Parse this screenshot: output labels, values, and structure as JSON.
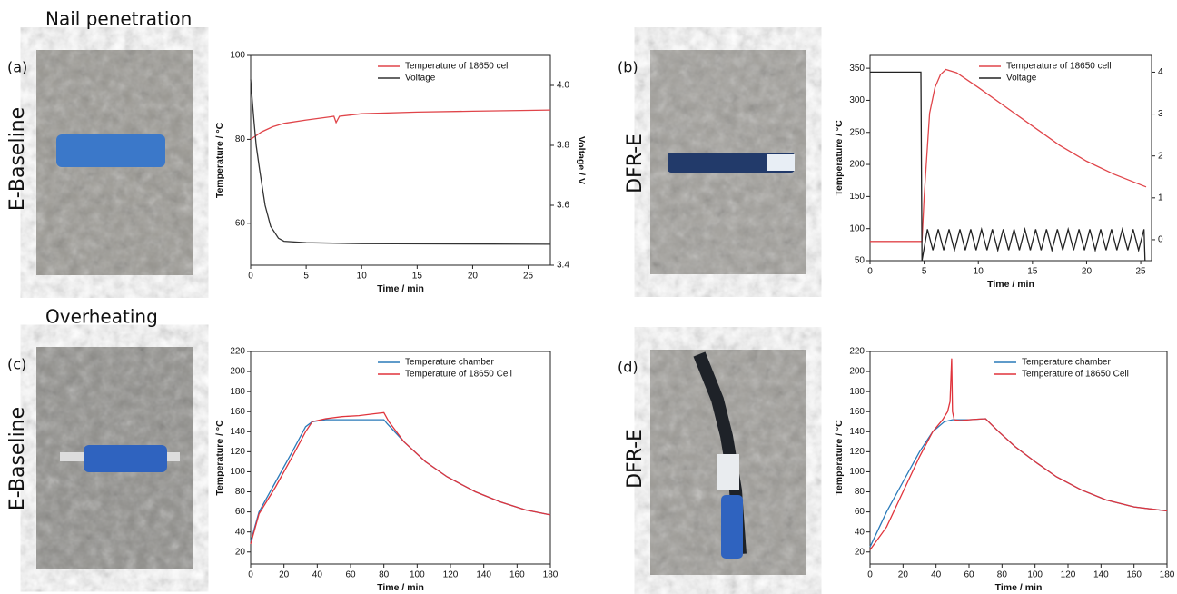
{
  "sections": [
    "Nail penetration",
    "Overheating"
  ],
  "panels": [
    {
      "label": "(a)",
      "sample": "E-Baseline"
    },
    {
      "label": "(b)",
      "sample": "DFR-E"
    },
    {
      "label": "(c)",
      "sample": "E-Baseline"
    },
    {
      "label": "(d)",
      "sample": "DFR-E"
    }
  ],
  "chart_data": [
    {
      "type": "line",
      "x_label": "Time / min",
      "y_label": "Temperature / °C",
      "y2_label": "Voltage / V",
      "xlim": [
        0,
        27
      ],
      "xticks": [
        0,
        5,
        10,
        15,
        20,
        25
      ],
      "ylim": [
        50,
        100
      ],
      "yticks": [
        60,
        80,
        100
      ],
      "y2lim": [
        3.4,
        4.1
      ],
      "y2ticks": [
        3.4,
        3.6,
        3.8,
        {
          "value": 4,
          "label": "4.0"
        }
      ],
      "legend": "upper right",
      "series": [
        {
          "name": "Temperature of 18650 cell",
          "color": "#e0454a",
          "x": [
            0,
            1,
            2,
            3,
            5,
            7,
            7.5,
            7.7,
            8,
            10,
            15,
            20,
            25,
            27
          ],
          "values": [
            80,
            81.8,
            83,
            83.8,
            84.6,
            85.3,
            85.5,
            84,
            85.5,
            86.1,
            86.5,
            86.7,
            86.9,
            87
          ]
        },
        {
          "name": "Voltage",
          "color": "#333333",
          "axis": "y2",
          "x": [
            0,
            0.15,
            0.3,
            0.5,
            0.8,
            1.3,
            1.8,
            2.5,
            3,
            5,
            10,
            27
          ],
          "values": [
            4.02,
            3.95,
            3.88,
            3.8,
            3.72,
            3.6,
            3.53,
            3.49,
            3.48,
            3.475,
            3.472,
            3.47
          ]
        }
      ]
    },
    {
      "type": "line",
      "x_label": "Time / min",
      "y_label": "Temperature / °C",
      "xlim": [
        0,
        26
      ],
      "xticks": [
        0,
        5,
        10,
        15,
        20,
        25
      ],
      "ylim": [
        50,
        370
      ],
      "yticks": [
        50,
        100,
        150,
        200,
        250,
        300,
        350
      ],
      "y2lim": [
        -0.5,
        4.4
      ],
      "y2ticks": [
        0,
        1,
        2,
        3,
        4
      ],
      "legend": "upper right",
      "series": [
        {
          "name": "Temperature of 18650 cell",
          "color": "#e0454a",
          "x": [
            0,
            4.8,
            5,
            5.5,
            6,
            6.5,
            7,
            8,
            10,
            12.5,
            15,
            17.5,
            20,
            22.5,
            25.5
          ],
          "values": [
            80,
            80,
            150,
            280,
            320,
            340,
            348,
            343,
            320,
            290,
            260,
            230,
            205,
            185,
            165
          ]
        },
        {
          "name": "Voltage",
          "color": "#222222",
          "axis": "y2",
          "x": [
            0,
            4.7,
            4.8,
            5.3,
            5.8,
            6.3,
            6.8,
            7.3,
            7.8,
            8.3,
            8.8,
            9.3,
            9.8,
            10.3,
            10.8,
            11.3,
            11.8,
            12.3,
            12.8,
            13.3,
            13.8,
            14.3,
            14.8,
            15.3,
            15.8,
            16.3,
            16.8,
            17.3,
            17.8,
            18.3,
            18.8,
            19.3,
            19.8,
            20.3,
            20.8,
            21.3,
            21.8,
            22.3,
            22.8,
            23.3,
            23.8,
            24.3,
            24.8,
            25.3,
            25.4
          ],
          "values": [
            4,
            4,
            -0.5,
            0.25,
            -0.25,
            0.25,
            -0.25,
            0.25,
            -0.25,
            0.25,
            -0.25,
            0.25,
            -0.25,
            0.25,
            -0.25,
            0.25,
            -0.25,
            0.25,
            -0.25,
            0.25,
            -0.25,
            0.25,
            -0.25,
            0.25,
            -0.25,
            0.25,
            -0.25,
            0.25,
            -0.25,
            0.25,
            -0.25,
            0.25,
            -0.25,
            0.25,
            -0.25,
            0.25,
            -0.25,
            0.25,
            -0.25,
            0.25,
            -0.25,
            0.25,
            -0.25,
            0.25,
            -0.5
          ]
        }
      ]
    },
    {
      "type": "line",
      "x_label": "Time / min",
      "y_label": "Temperature / °C",
      "xlim": [
        0,
        180
      ],
      "xticks": [
        0,
        20,
        40,
        60,
        80,
        100,
        120,
        140,
        160,
        180
      ],
      "ylim": [
        8,
        220
      ],
      "yticks": [
        20,
        40,
        60,
        80,
        100,
        120,
        140,
        160,
        180,
        200,
        220
      ],
      "legend": "upper right",
      "series": [
        {
          "name": "Temperature chamber",
          "color": "#2a7ab9",
          "x": [
            0,
            5,
            15,
            25,
            33,
            37,
            45,
            60,
            80,
            82,
            92,
            105,
            118,
            135,
            150,
            165,
            180
          ],
          "values": [
            30,
            60,
            90,
            120,
            145,
            150,
            152,
            152,
            152,
            148,
            130,
            110,
            95,
            80,
            70,
            62,
            57
          ]
        },
        {
          "name": "Temperature of 18650 Cell",
          "color": "#e0343c",
          "x": [
            0,
            5,
            15,
            25,
            33,
            37,
            45,
            55,
            65,
            75,
            80,
            83,
            92,
            105,
            118,
            135,
            150,
            165,
            180
          ],
          "values": [
            28,
            58,
            85,
            115,
            140,
            150,
            153,
            155,
            156,
            158,
            159,
            150,
            130,
            110,
            95,
            80,
            70,
            62,
            57
          ]
        }
      ]
    },
    {
      "type": "line",
      "x_label": "Time / min",
      "y_label": "Temperature / °C",
      "xlim": [
        0,
        180
      ],
      "xticks": [
        0,
        20,
        40,
        60,
        80,
        100,
        120,
        140,
        160,
        180
      ],
      "ylim": [
        8,
        220
      ],
      "yticks": [
        20,
        40,
        60,
        80,
        100,
        120,
        140,
        160,
        180,
        200,
        220
      ],
      "legend": "upper right",
      "series": [
        {
          "name": "Temperature chamber",
          "color": "#2a7ab9",
          "x": [
            0,
            10,
            20,
            30,
            38,
            45,
            50,
            60,
            70,
            78,
            88,
            100,
            113,
            128,
            143,
            160,
            180
          ],
          "values": [
            25,
            60,
            90,
            120,
            140,
            150,
            152,
            152,
            153,
            140,
            125,
            110,
            95,
            82,
            72,
            65,
            61
          ]
        },
        {
          "name": "Temperature of 18650 Cell",
          "color": "#e0343c",
          "x": [
            0,
            10,
            20,
            30,
            38,
            44,
            47,
            48.5,
            49.5,
            50,
            51,
            55,
            60,
            70,
            78,
            88,
            100,
            113,
            128,
            143,
            160,
            180
          ],
          "values": [
            22,
            45,
            80,
            115,
            140,
            152,
            160,
            170,
            213,
            160,
            152,
            151,
            152,
            153,
            140,
            125,
            110,
            95,
            82,
            72,
            65,
            61
          ]
        }
      ]
    }
  ]
}
